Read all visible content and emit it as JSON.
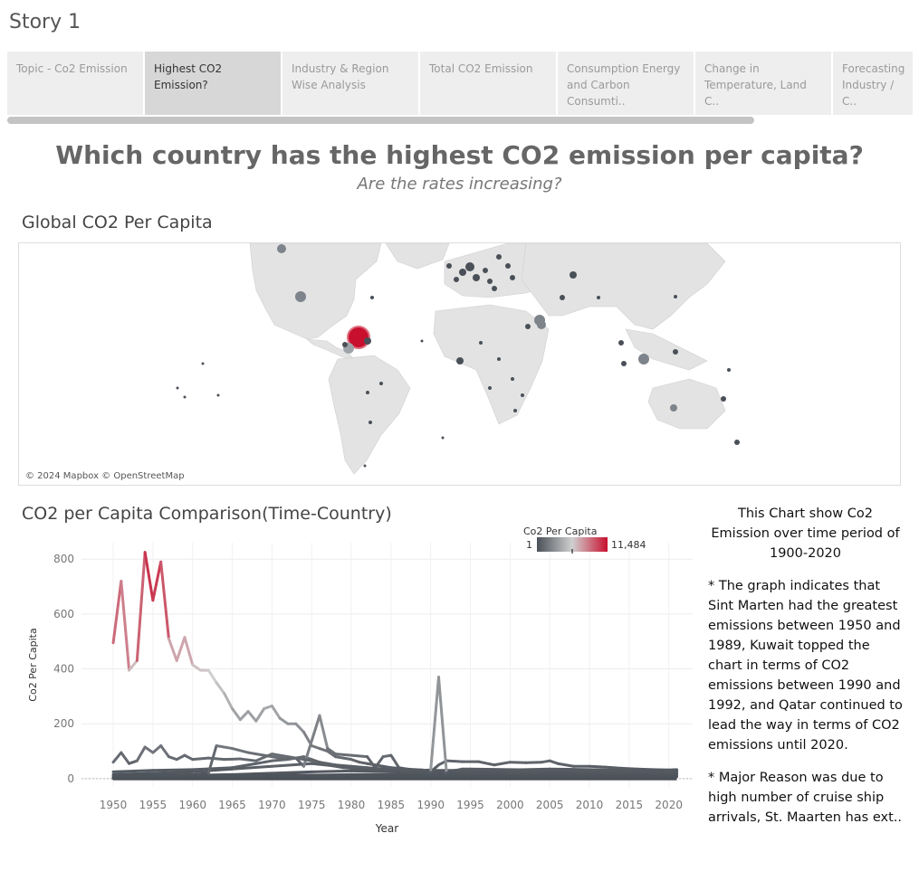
{
  "story": {
    "title": "Story 1"
  },
  "tabs": [
    {
      "label": "Topic - Co2 Emission",
      "active": false
    },
    {
      "label": "Highest CO2 Emission?",
      "active": true
    },
    {
      "label": "Industry & Region Wise Analysis",
      "active": false
    },
    {
      "label": "Total CO2 Emission",
      "active": false
    },
    {
      "label": "Consumption Energy and Carbon Consumti..",
      "active": false
    },
    {
      "label": "Change in Temperature, Land C..",
      "active": false
    },
    {
      "label": "Forecasting Industry / C..",
      "active": false
    }
  ],
  "header": {
    "title": "Which country has the highest CO2 emission per capita?",
    "subtitle": "Are the rates increasing?"
  },
  "map": {
    "title": "Global CO2 Per Capita",
    "credit": "© 2024 Mapbox © OpenStreetMap"
  },
  "line_chart_title": "CO2 per Capita  Comparison(Time-Country)",
  "legend": {
    "title": "Co2 Per Capita",
    "min": "1",
    "max": "11,484"
  },
  "colors": {
    "low": "#4a5058",
    "mid": "#d0d0d0",
    "high": "#c8102e"
  },
  "side_note": {
    "line1": "This Chart show Co2 Emission over time period of",
    "line2": "1900-2020",
    "para1": "* The graph indicates that Sint Marten had the greatest emissions between 1950 and 1989, Kuwait topped the chart in terms of CO2 emissions between 1990 and 1992, and Qatar continued to lead the way in terms of CO2 emissions until 2020.",
    "para2": "* Major Reason was due to high number of cruise ship arrivals, St. Maarten has ext.."
  },
  "chart_data": {
    "type": "line",
    "title": "CO2 per Capita  Comparison(Time-Country)",
    "xlabel": "Year",
    "ylabel": "Co2 Per Capita",
    "xlim": [
      1946,
      2023
    ],
    "ylim": [
      -30,
      860
    ],
    "x_ticks": [
      1950,
      1955,
      1960,
      1965,
      1970,
      1975,
      1980,
      1985,
      1990,
      1995,
      2000,
      2005,
      2010,
      2015,
      2020
    ],
    "y_ticks": [
      0,
      200,
      400,
      600,
      800
    ],
    "series": [
      {
        "values": [
          [
            1950,
            495
          ],
          [
            1951,
            720
          ],
          [
            1952,
            395
          ],
          [
            1953,
            430
          ],
          [
            1954,
            825
          ],
          [
            1955,
            650
          ],
          [
            1956,
            790
          ],
          [
            1957,
            510
          ],
          [
            1958,
            430
          ],
          [
            1959,
            515
          ],
          [
            1960,
            415
          ],
          [
            1961,
            395
          ],
          [
            1962,
            395
          ],
          [
            1963,
            350
          ],
          [
            1964,
            310
          ],
          [
            1965,
            255
          ],
          [
            1966,
            215
          ],
          [
            1967,
            245
          ],
          [
            1968,
            210
          ],
          [
            1969,
            255
          ],
          [
            1970,
            265
          ],
          [
            1971,
            220
          ],
          [
            1972,
            200
          ],
          [
            1973,
            200
          ],
          [
            1974,
            170
          ],
          [
            1975,
            120
          ],
          [
            1976,
            110
          ],
          [
            1977,
            100
          ],
          [
            1978,
            80
          ],
          [
            1979,
            75
          ],
          [
            1980,
            70
          ],
          [
            1981,
            60
          ],
          [
            1982,
            55
          ],
          [
            1983,
            50
          ],
          [
            1984,
            45
          ],
          [
            1985,
            40
          ],
          [
            1986,
            38
          ],
          [
            1987,
            35
          ],
          [
            1988,
            33
          ],
          [
            1989,
            32
          ]
        ]
      },
      {
        "values": [
          [
            1989,
            30
          ],
          [
            1990,
            32
          ],
          [
            1991,
            370
          ],
          [
            1992,
            20
          ],
          [
            1993,
            30
          ],
          [
            1994,
            35
          ],
          [
            1995,
            35
          ],
          [
            2000,
            33
          ],
          [
            2005,
            32
          ],
          [
            2010,
            30
          ],
          [
            2015,
            28
          ],
          [
            2020,
            27
          ],
          [
            2021,
            28
          ]
        ]
      },
      {
        "values": [
          [
            1950,
            60
          ],
          [
            1951,
            95
          ],
          [
            1952,
            55
          ],
          [
            1953,
            65
          ],
          [
            1954,
            115
          ],
          [
            1955,
            95
          ],
          [
            1956,
            120
          ],
          [
            1957,
            80
          ],
          [
            1958,
            70
          ],
          [
            1959,
            85
          ],
          [
            1960,
            70
          ],
          [
            1962,
            75
          ],
          [
            1964,
            70
          ],
          [
            1966,
            72
          ],
          [
            1968,
            65
          ],
          [
            1970,
            90
          ],
          [
            1972,
            80
          ],
          [
            1974,
            70
          ],
          [
            1975,
            65
          ],
          [
            1976,
            60
          ],
          [
            1978,
            50
          ],
          [
            1980,
            45
          ],
          [
            1982,
            40
          ],
          [
            1984,
            35
          ],
          [
            1986,
            30
          ],
          [
            1988,
            28
          ],
          [
            1990,
            25
          ],
          [
            1991,
            50
          ],
          [
            1992,
            65
          ],
          [
            1994,
            62
          ],
          [
            1996,
            62
          ],
          [
            1998,
            50
          ],
          [
            2000,
            60
          ],
          [
            2002,
            58
          ],
          [
            2004,
            60
          ],
          [
            2005,
            65
          ],
          [
            2006,
            55
          ],
          [
            2008,
            45
          ],
          [
            2010,
            45
          ],
          [
            2012,
            42
          ],
          [
            2014,
            38
          ],
          [
            2016,
            35
          ],
          [
            2018,
            33
          ],
          [
            2020,
            32
          ],
          [
            2021,
            33
          ]
        ]
      },
      {
        "values": [
          [
            1950,
            10
          ],
          [
            1955,
            12
          ],
          [
            1960,
            15
          ],
          [
            1962,
            20
          ],
          [
            1963,
            120
          ],
          [
            1965,
            110
          ],
          [
            1967,
            95
          ],
          [
            1969,
            85
          ],
          [
            1971,
            75
          ],
          [
            1973,
            75
          ],
          [
            1974,
            45
          ],
          [
            1976,
            230
          ],
          [
            1977,
            110
          ],
          [
            1978,
            90
          ],
          [
            1980,
            85
          ],
          [
            1982,
            80
          ],
          [
            1983,
            40
          ],
          [
            1984,
            80
          ],
          [
            1985,
            85
          ],
          [
            1986,
            40
          ],
          [
            1988,
            30
          ],
          [
            1990,
            25
          ],
          [
            1995,
            25
          ],
          [
            2000,
            28
          ],
          [
            2005,
            30
          ],
          [
            2010,
            28
          ],
          [
            2015,
            30
          ],
          [
            2020,
            30
          ],
          [
            2021,
            32
          ]
        ]
      },
      {
        "values": [
          [
            1950,
            25
          ],
          [
            1955,
            30
          ],
          [
            1960,
            33
          ],
          [
            1965,
            40
          ],
          [
            1968,
            55
          ],
          [
            1970,
            65
          ],
          [
            1972,
            70
          ],
          [
            1974,
            80
          ],
          [
            1975,
            70
          ],
          [
            1977,
            50
          ],
          [
            1979,
            40
          ],
          [
            1981,
            35
          ],
          [
            1985,
            30
          ],
          [
            1990,
            30
          ],
          [
            1995,
            30
          ],
          [
            2000,
            32
          ],
          [
            2005,
            35
          ],
          [
            2010,
            33
          ],
          [
            2015,
            30
          ],
          [
            2020,
            28
          ],
          [
            2021,
            30
          ]
        ]
      },
      {
        "values": [
          [
            1950,
            15
          ],
          [
            1955,
            20
          ],
          [
            1960,
            25
          ],
          [
            1965,
            35
          ],
          [
            1970,
            45
          ],
          [
            1975,
            55
          ],
          [
            1980,
            40
          ],
          [
            1985,
            35
          ],
          [
            1990,
            20
          ],
          [
            1995,
            22
          ],
          [
            2000,
            24
          ],
          [
            2005,
            26
          ],
          [
            2010,
            25
          ],
          [
            2015,
            23
          ],
          [
            2020,
            22
          ],
          [
            2021,
            23
          ]
        ]
      },
      {
        "values": [
          [
            1950,
            5
          ],
          [
            1955,
            8
          ],
          [
            1960,
            12
          ],
          [
            1965,
            15
          ],
          [
            1970,
            20
          ],
          [
            1975,
            25
          ],
          [
            1980,
            28
          ],
          [
            1985,
            25
          ],
          [
            1990,
            22
          ],
          [
            1995,
            20
          ],
          [
            2000,
            22
          ],
          [
            2005,
            25
          ],
          [
            2010,
            24
          ],
          [
            2015,
            22
          ],
          [
            2020,
            20
          ],
          [
            2021,
            21
          ]
        ]
      },
      {
        "values": [
          [
            1950,
            2
          ],
          [
            1960,
            5
          ],
          [
            1970,
            10
          ],
          [
            1980,
            15
          ],
          [
            1990,
            15
          ],
          [
            2000,
            17
          ],
          [
            2010,
            18
          ],
          [
            2020,
            16
          ],
          [
            2021,
            17
          ]
        ]
      },
      {
        "values": [
          [
            1950,
            0
          ],
          [
            1960,
            2
          ],
          [
            1970,
            5
          ],
          [
            1980,
            8
          ],
          [
            1990,
            10
          ],
          [
            2000,
            12
          ],
          [
            2010,
            13
          ],
          [
            2020,
            12
          ],
          [
            2021,
            12
          ]
        ]
      },
      {
        "values": [
          [
            1950,
            1
          ],
          [
            1960,
            1
          ],
          [
            1970,
            3
          ],
          [
            1980,
            4
          ],
          [
            1990,
            5
          ],
          [
            2000,
            6
          ],
          [
            2010,
            7
          ],
          [
            2020,
            7
          ],
          [
            2021,
            7
          ]
        ]
      }
    ],
    "grid": true,
    "legend": "top-right"
  }
}
